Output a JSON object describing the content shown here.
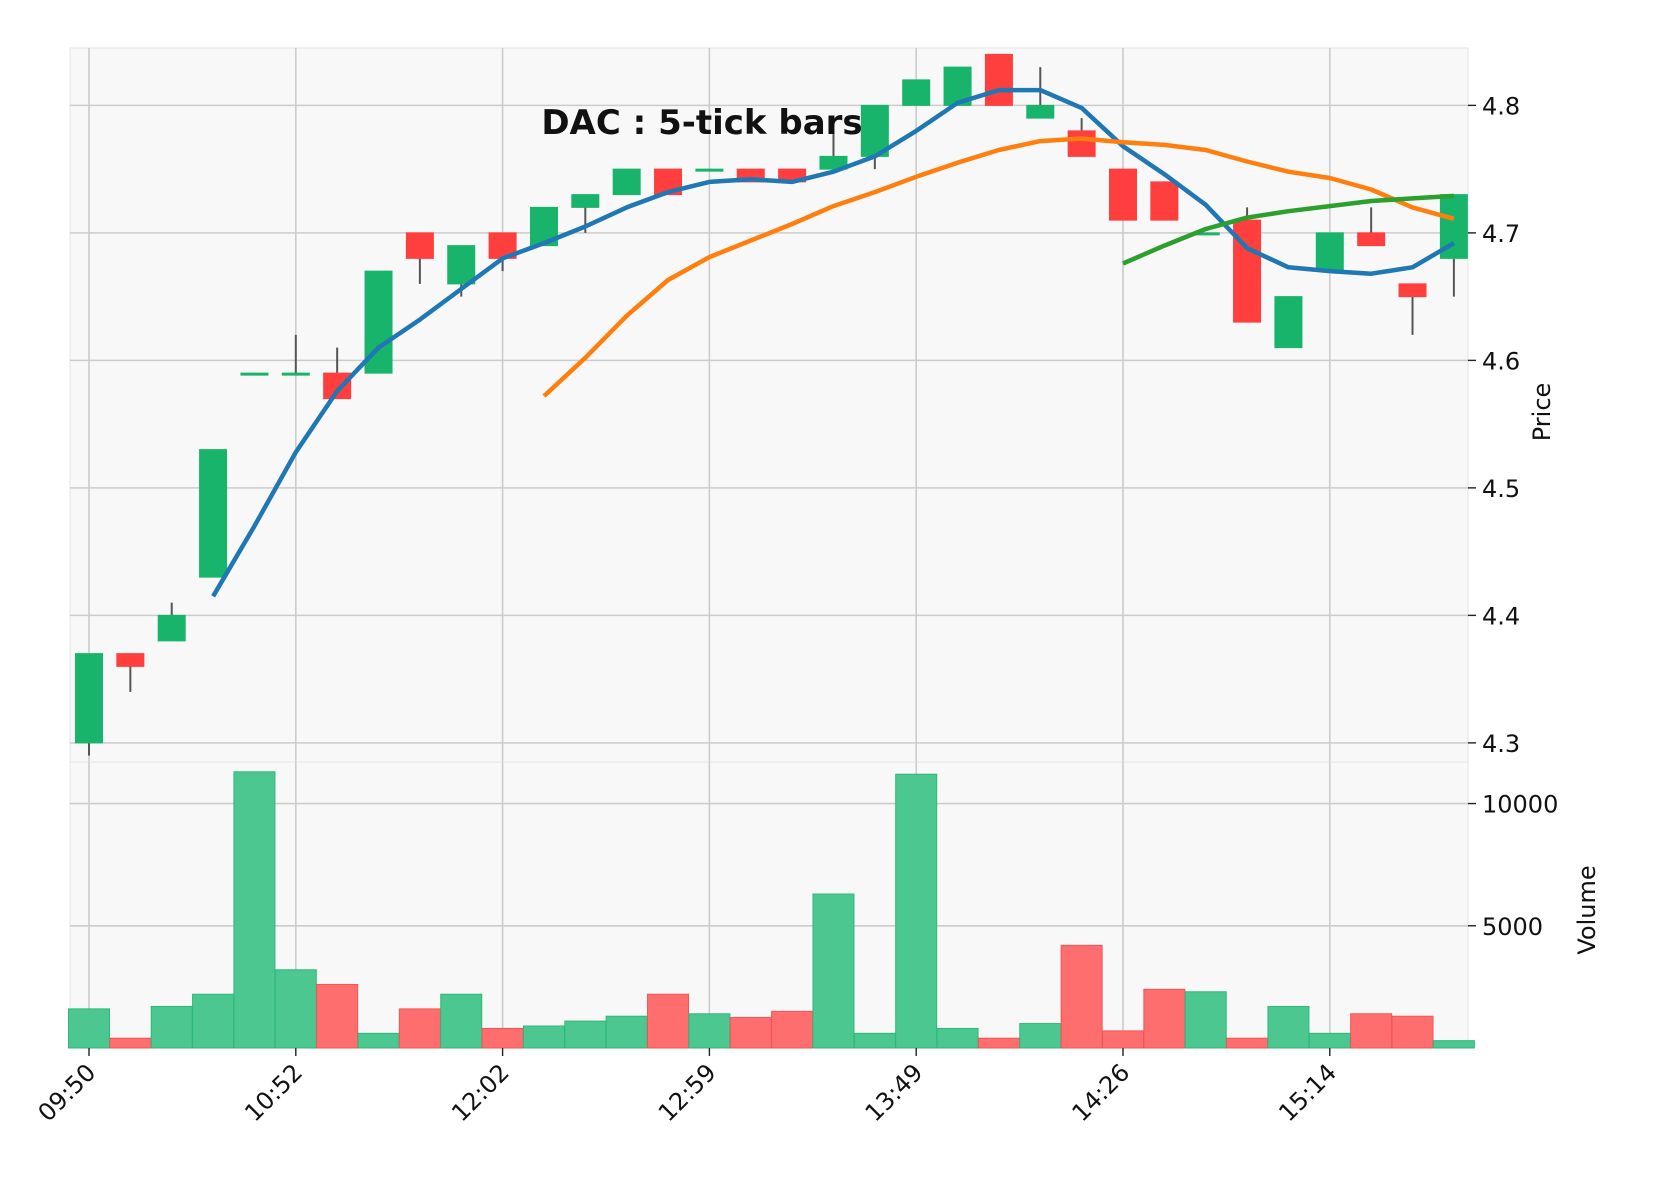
{
  "chart_data": {
    "type": "candlestick",
    "title": "DAC : 5-tick bars",
    "price_axis": {
      "label": "Price",
      "ylim": [
        4.285,
        4.845
      ],
      "ticks": [
        4.3,
        4.4,
        4.5,
        4.6,
        4.7,
        4.8
      ],
      "position": "right"
    },
    "volume_axis": {
      "label": "Volume",
      "ylim": [
        0,
        11700
      ],
      "ticks": [
        5000,
        10000
      ],
      "position": "right"
    },
    "x_tick_labels": [
      {
        "index": 0,
        "label": "09:50"
      },
      {
        "index": 5,
        "label": "10:52"
      },
      {
        "index": 10,
        "label": "12:02"
      },
      {
        "index": 15,
        "label": "12:59"
      },
      {
        "index": 20,
        "label": "13:49"
      },
      {
        "index": 25,
        "label": "14:26"
      },
      {
        "index": 30,
        "label": "15:14"
      }
    ],
    "grid": true,
    "colors": {
      "up": "#18b46b",
      "down": "#ff3e3e",
      "ma1": "#1f77b4",
      "ma2": "#ff7f0e",
      "ma3": "#2ca02c",
      "grid": "#cccccc",
      "panel_bg": "#f8f8f8"
    },
    "candles": [
      {
        "o": 4.3,
        "h": 4.37,
        "l": 4.29,
        "c": 4.37,
        "v": 1600
      },
      {
        "o": 4.37,
        "h": 4.37,
        "l": 4.34,
        "c": 4.36,
        "v": 400
      },
      {
        "o": 4.38,
        "h": 4.41,
        "l": 4.38,
        "c": 4.4,
        "v": 1700
      },
      {
        "o": 4.43,
        "h": 4.53,
        "l": 4.43,
        "c": 4.53,
        "v": 2200
      },
      {
        "o": 4.59,
        "h": 4.59,
        "l": 4.59,
        "c": 4.59,
        "v": 11300
      },
      {
        "o": 4.59,
        "h": 4.62,
        "l": 4.59,
        "c": 4.59,
        "v": 3200
      },
      {
        "o": 4.59,
        "h": 4.61,
        "l": 4.57,
        "c": 4.57,
        "v": 2600
      },
      {
        "o": 4.59,
        "h": 4.67,
        "l": 4.59,
        "c": 4.67,
        "v": 600
      },
      {
        "o": 4.7,
        "h": 4.7,
        "l": 4.66,
        "c": 4.68,
        "v": 1600
      },
      {
        "o": 4.66,
        "h": 4.69,
        "l": 4.65,
        "c": 4.69,
        "v": 2200
      },
      {
        "o": 4.7,
        "h": 4.7,
        "l": 4.67,
        "c": 4.68,
        "v": 800
      },
      {
        "o": 4.69,
        "h": 4.72,
        "l": 4.69,
        "c": 4.72,
        "v": 900
      },
      {
        "o": 4.72,
        "h": 4.73,
        "l": 4.7,
        "c": 4.73,
        "v": 1100
      },
      {
        "o": 4.73,
        "h": 4.75,
        "l": 4.73,
        "c": 4.75,
        "v": 1300
      },
      {
        "o": 4.75,
        "h": 4.75,
        "l": 4.73,
        "c": 4.73,
        "v": 2200
      },
      {
        "o": 4.75,
        "h": 4.75,
        "l": 4.75,
        "c": 4.75,
        "v": 1400
      },
      {
        "o": 4.75,
        "h": 4.75,
        "l": 4.74,
        "c": 4.74,
        "v": 1250
      },
      {
        "o": 4.75,
        "h": 4.75,
        "l": 4.74,
        "c": 4.74,
        "v": 1500
      },
      {
        "o": 4.75,
        "h": 4.78,
        "l": 4.75,
        "c": 4.76,
        "v": 6300
      },
      {
        "o": 4.76,
        "h": 4.8,
        "l": 4.75,
        "c": 4.8,
        "v": 600
      },
      {
        "o": 4.8,
        "h": 4.82,
        "l": 4.8,
        "c": 4.82,
        "v": 11200
      },
      {
        "o": 4.8,
        "h": 4.83,
        "l": 4.8,
        "c": 4.83,
        "v": 800
      },
      {
        "o": 4.84,
        "h": 4.84,
        "l": 4.8,
        "c": 4.8,
        "v": 400
      },
      {
        "o": 4.79,
        "h": 4.83,
        "l": 4.79,
        "c": 4.8,
        "v": 1000
      },
      {
        "o": 4.78,
        "h": 4.79,
        "l": 4.76,
        "c": 4.76,
        "v": 4200
      },
      {
        "o": 4.75,
        "h": 4.75,
        "l": 4.71,
        "c": 4.71,
        "v": 700
      },
      {
        "o": 4.74,
        "h": 4.74,
        "l": 4.71,
        "c": 4.71,
        "v": 2400
      },
      {
        "o": 4.7,
        "h": 4.7,
        "l": 4.7,
        "c": 4.7,
        "v": 2300
      },
      {
        "o": 4.71,
        "h": 4.72,
        "l": 4.63,
        "c": 4.63,
        "v": 400
      },
      {
        "o": 4.61,
        "h": 4.65,
        "l": 4.61,
        "c": 4.65,
        "v": 1700
      },
      {
        "o": 4.67,
        "h": 4.7,
        "l": 4.67,
        "c": 4.7,
        "v": 600
      },
      {
        "o": 4.7,
        "h": 4.72,
        "l": 4.69,
        "c": 4.69,
        "v": 1400
      },
      {
        "o": 4.66,
        "h": 4.66,
        "l": 4.62,
        "c": 4.65,
        "v": 1300
      },
      {
        "o": 4.68,
        "h": 4.73,
        "l": 4.65,
        "c": 4.73,
        "v": 300
      }
    ],
    "moving_averages": [
      {
        "values": [
          null,
          null,
          null,
          4.415,
          4.47,
          4.528,
          4.576,
          4.61,
          4.632,
          4.656,
          4.68,
          4.692,
          4.705,
          4.72,
          4.732,
          4.74,
          4.742,
          4.74,
          4.748,
          4.76,
          4.78,
          4.802,
          4.812,
          4.812,
          4.798,
          4.768,
          4.746,
          4.722,
          4.688,
          4.673,
          4.67,
          4.668,
          4.673,
          4.692
        ]
      },
      {
        "values": [
          null,
          null,
          null,
          null,
          null,
          null,
          null,
          null,
          null,
          null,
          null,
          4.572,
          4.602,
          4.635,
          4.663,
          4.681,
          4.694,
          4.707,
          4.721,
          4.732,
          4.744,
          4.755,
          4.765,
          4.772,
          4.774,
          4.771,
          4.769,
          4.765,
          4.756,
          4.748,
          4.743,
          4.734,
          4.72,
          4.711
        ]
      },
      {
        "values": [
          null,
          null,
          null,
          null,
          null,
          null,
          null,
          null,
          null,
          null,
          null,
          null,
          null,
          null,
          null,
          null,
          null,
          null,
          null,
          null,
          null,
          null,
          null,
          null,
          null,
          4.676,
          4.69,
          4.703,
          4.712,
          4.717,
          4.721,
          4.725,
          4.727,
          4.729
        ]
      }
    ]
  }
}
